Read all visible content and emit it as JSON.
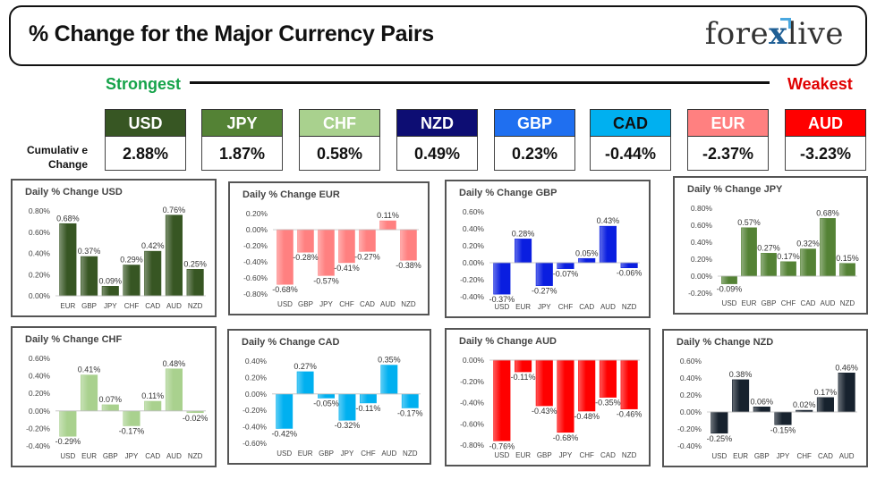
{
  "header": {
    "title": "% Change for the Major Currency Pairs",
    "logo_left": "fore",
    "logo_x": "x",
    "logo_right": "live"
  },
  "ranking": {
    "strongest_label": "Strongest",
    "weakest_label": "Weakest",
    "cumulative_label_1": "Cumulativ e",
    "cumulative_label_2": "Change",
    "currencies": [
      {
        "name": "USD",
        "value": "2.88%",
        "color": "#375623",
        "text_color": "#ffffff"
      },
      {
        "name": "JPY",
        "value": "1.87%",
        "color": "#548235",
        "text_color": "#ffffff"
      },
      {
        "name": "CHF",
        "value": "0.58%",
        "color": "#a9d18e",
        "text_color": "#ffffff"
      },
      {
        "name": "NZD",
        "value": "0.49%",
        "color": "#0d0d73",
        "text_color": "#ffffff"
      },
      {
        "name": "GBP",
        "value": "0.23%",
        "color": "#1f6ff0",
        "text_color": "#ffffff"
      },
      {
        "name": "CAD",
        "value": "-0.44%",
        "color": "#00b0f0",
        "text_color": "#111111"
      },
      {
        "name": "EUR",
        "value": "-2.37%",
        "color": "#ff8080",
        "text_color": "#ffffff"
      },
      {
        "name": "AUD",
        "value": "-3.23%",
        "color": "#ff0000",
        "text_color": "#ffffff"
      }
    ]
  },
  "chart_data": [
    {
      "type": "bar",
      "title": "Daily % Change USD",
      "color": "#375623",
      "categories": [
        "EUR",
        "GBP",
        "JPY",
        "CHF",
        "CAD",
        "AUD",
        "NZD"
      ],
      "values": [
        0.68,
        0.37,
        0.09,
        0.29,
        0.42,
        0.76,
        0.25
      ],
      "labels": [
        "0.68%",
        "0.37%",
        "0.09%",
        "0.29%",
        "0.42%",
        "0.76%",
        "0.25%"
      ],
      "ylim": [
        0,
        0.8
      ],
      "ticks": [
        0,
        0.2,
        0.4,
        0.6,
        0.8
      ],
      "tick_labels": [
        "0.00%",
        "0.20%",
        "0.40%",
        "0.60%",
        "0.80%"
      ]
    },
    {
      "type": "bar",
      "title": "Daily % Change EUR",
      "color": "#ff8080",
      "categories": [
        "USD",
        "GBP",
        "JPY",
        "CHF",
        "CAD",
        "AUD",
        "NZD"
      ],
      "values": [
        -0.68,
        -0.28,
        -0.57,
        -0.41,
        -0.27,
        0.11,
        -0.38
      ],
      "labels": [
        "-0.68%",
        "-0.28%",
        "-0.57%",
        "-0.41%",
        "-0.27%",
        "0.11%",
        "-0.38%"
      ],
      "ylim": [
        -0.8,
        0.2
      ],
      "ticks": [
        -0.8,
        -0.6,
        -0.4,
        -0.2,
        0,
        0.2
      ],
      "tick_labels": [
        "-0.80%",
        "-0.60%",
        "-0.40%",
        "-0.20%",
        "0.00%",
        "0.20%"
      ]
    },
    {
      "type": "bar",
      "title": "Daily % Change GBP",
      "color": "#0a1ee0",
      "categories": [
        "USD",
        "EUR",
        "JPY",
        "CHF",
        "CAD",
        "AUD",
        "NZD"
      ],
      "values": [
        -0.37,
        0.28,
        -0.27,
        -0.07,
        0.05,
        0.43,
        -0.06
      ],
      "labels": [
        "-0.37%",
        "0.28%",
        "-0.27%",
        "-0.07%",
        "0.05%",
        "0.43%",
        "-0.06%"
      ],
      "ylim": [
        -0.4,
        0.6
      ],
      "ticks": [
        -0.4,
        -0.2,
        0,
        0.2,
        0.4,
        0.6
      ],
      "tick_labels": [
        "-0.40%",
        "-0.20%",
        "0.00%",
        "0.20%",
        "0.40%",
        "0.60%"
      ]
    },
    {
      "type": "bar",
      "title": "Daily % Change JPY",
      "color": "#548235",
      "categories": [
        "USD",
        "EUR",
        "GBP",
        "CHF",
        "CAD",
        "AUD",
        "NZD"
      ],
      "values": [
        -0.09,
        0.57,
        0.27,
        0.17,
        0.32,
        0.68,
        0.15
      ],
      "labels": [
        "-0.09%",
        "0.57%",
        "0.27%",
        "0.17%",
        "0.32%",
        "0.68%",
        "0.15%"
      ],
      "ylim": [
        -0.2,
        0.8
      ],
      "ticks": [
        -0.2,
        0,
        0.2,
        0.4,
        0.6,
        0.8
      ],
      "tick_labels": [
        "-0.20%",
        "0.00%",
        "0.20%",
        "0.40%",
        "0.60%",
        "0.80%"
      ]
    },
    {
      "type": "bar",
      "title": "Daily % Change CHF",
      "color": "#a9d18e",
      "categories": [
        "USD",
        "EUR",
        "GBP",
        "JPY",
        "CAD",
        "AUD",
        "NZD"
      ],
      "values": [
        -0.29,
        0.41,
        0.07,
        -0.17,
        0.11,
        0.48,
        -0.02
      ],
      "labels": [
        "-0.29%",
        "0.41%",
        "0.07%",
        "-0.17%",
        "0.11%",
        "0.48%",
        "-0.02%"
      ],
      "ylim": [
        -0.4,
        0.6
      ],
      "ticks": [
        -0.4,
        -0.2,
        0,
        0.2,
        0.4,
        0.6
      ],
      "tick_labels": [
        "-0.40%",
        "-0.20%",
        "0.00%",
        "0.20%",
        "0.40%",
        "0.60%"
      ]
    },
    {
      "type": "bar",
      "title": "Daily % Change CAD",
      "color": "#00b0f0",
      "categories": [
        "USD",
        "EUR",
        "GBP",
        "JPY",
        "CHF",
        "AUD",
        "NZD"
      ],
      "values": [
        -0.42,
        0.27,
        -0.05,
        -0.32,
        -0.11,
        0.35,
        -0.17
      ],
      "labels": [
        "-0.42%",
        "0.27%",
        "-0.05%",
        "-0.32%",
        "-0.11%",
        "0.35%",
        "-0.17%"
      ],
      "ylim": [
        -0.6,
        0.4
      ],
      "ticks": [
        -0.6,
        -0.4,
        -0.2,
        0,
        0.2,
        0.4
      ],
      "tick_labels": [
        "-0.60%",
        "-0.40%",
        "-0.20%",
        "0.00%",
        "0.20%",
        "0.40%"
      ]
    },
    {
      "type": "bar",
      "title": "Daily % Change AUD",
      "color": "#ff0000",
      "categories": [
        "USD",
        "EUR",
        "GBP",
        "JPY",
        "CHF",
        "CAD",
        "NZD"
      ],
      "values": [
        -0.76,
        -0.11,
        -0.43,
        -0.68,
        -0.48,
        -0.35,
        -0.46
      ],
      "labels": [
        "-0.76%",
        "-0.11%",
        "-0.43%",
        "-0.68%",
        "-0.48%",
        "-0.35%",
        "-0.46%"
      ],
      "ylim": [
        -0.8,
        0
      ],
      "ticks": [
        -0.8,
        -0.6,
        -0.4,
        -0.2,
        0
      ],
      "tick_labels": [
        "-0.80%",
        "-0.60%",
        "-0.40%",
        "-0.20%",
        "0.00%"
      ]
    },
    {
      "type": "bar",
      "title": "Daily % Change NZD",
      "color": "#17222e",
      "categories": [
        "USD",
        "EUR",
        "GBP",
        "JPY",
        "CHF",
        "CAD",
        "AUD"
      ],
      "values": [
        -0.25,
        0.38,
        0.06,
        -0.15,
        0.02,
        0.17,
        0.46
      ],
      "labels": [
        "-0.25%",
        "0.38%",
        "0.06%",
        "-0.15%",
        "0.02%",
        "0.17%",
        "0.46%"
      ],
      "ylim": [
        -0.4,
        0.6
      ],
      "ticks": [
        -0.4,
        -0.2,
        0,
        0.2,
        0.4,
        0.6
      ],
      "tick_labels": [
        "-0.40%",
        "-0.20%",
        "0.00%",
        "0.20%",
        "0.40%",
        "0.60%"
      ]
    }
  ]
}
